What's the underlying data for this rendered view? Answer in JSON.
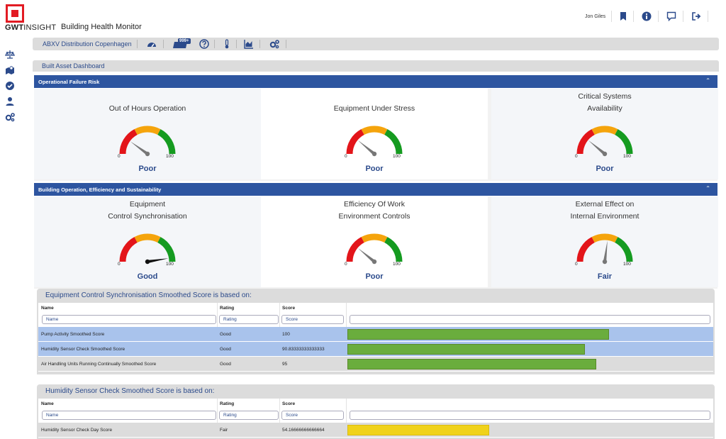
{
  "header": {
    "logo_text_bold": "GWT",
    "logo_text_light": "INSIGHT",
    "app_title": "Building Health Monitor",
    "user_name": "Jon Giles",
    "icons": [
      "bookmark-icon",
      "info-icon",
      "chat-icon",
      "sign-out-icon"
    ]
  },
  "left_nav": {
    "icons": [
      "balance-scale-icon",
      "map-pin-icon",
      "check-circle-icon",
      "user-icon",
      "cogs-icon"
    ]
  },
  "toolbar": {
    "site_name": "ABXV Distribution Copenhagen",
    "badge": "999+",
    "icons": [
      "dashboard-gauge-icon",
      "alerts-icon",
      "help-icon",
      "thermometer-icon",
      "area-chart-icon",
      "cogs-icon"
    ]
  },
  "dashboard": {
    "title": "Built Asset Dashboard"
  },
  "sections": [
    {
      "label": "Operational Failure Risk",
      "gauges": [
        {
          "title_line1": "",
          "title_line2": "Out of Hours Operation",
          "min": "0",
          "max": "100",
          "value": 20,
          "status": "Poor"
        },
        {
          "title_line1": "",
          "title_line2": "Equipment Under Stress",
          "min": "0",
          "max": "100",
          "value": 22,
          "status": "Poor"
        },
        {
          "title_line1": "Critical Systems",
          "title_line2": "Availability",
          "min": "0",
          "max": "100",
          "value": 22,
          "status": "Poor"
        }
      ]
    },
    {
      "label": "Building Operation, Efficiency and Sustainability",
      "gauges": [
        {
          "title_line1": "Equipment",
          "title_line2": "Control Synchronisation",
          "min": "0",
          "max": "100",
          "value": 95,
          "status": "Good"
        },
        {
          "title_line1": "Efficiency Of Work",
          "title_line2": "Environment Controls",
          "min": "0",
          "max": "100",
          "value": 22,
          "status": "Poor"
        },
        {
          "title_line1": "External Effect on",
          "title_line2": "Internal Environment",
          "min": "0",
          "max": "100",
          "value": 54,
          "status": "Fair"
        }
      ]
    }
  ],
  "details": [
    {
      "title": "Equipment Control Synchronisation Smoothed Score is based on:",
      "columns": [
        "Name",
        "Rating",
        "Score"
      ],
      "filters": [
        "Name",
        "Rating",
        "Score"
      ],
      "rows": [
        {
          "name": "Pump Activity Smoothed Score",
          "rating": "Good",
          "score": "100",
          "fraction": 0.72,
          "color": "#6aad3d",
          "highlight": true
        },
        {
          "name": "Humidity Sensor Check Smoothed Score",
          "rating": "Good",
          "score": "90.83333333333333",
          "fraction": 0.655,
          "color": "#6aad3d",
          "highlight": true
        },
        {
          "name": "Air Handling Units Running Continually Smoothed Score",
          "rating": "Good",
          "score": "95",
          "fraction": 0.685,
          "color": "#6aad3d",
          "highlight": false
        }
      ]
    },
    {
      "title": "Humidity Sensor Check Smoothed Score is based on:",
      "columns": [
        "Name",
        "Rating",
        "Score"
      ],
      "filters": [
        "Name",
        "Rating",
        "Score"
      ],
      "rows": [
        {
          "name": "Humidity Sensor Check Day Score",
          "rating": "Fair",
          "score": "54.16666666666664",
          "fraction": 0.39,
          "color": "#f0d21a",
          "highlight": false
        }
      ]
    }
  ]
}
